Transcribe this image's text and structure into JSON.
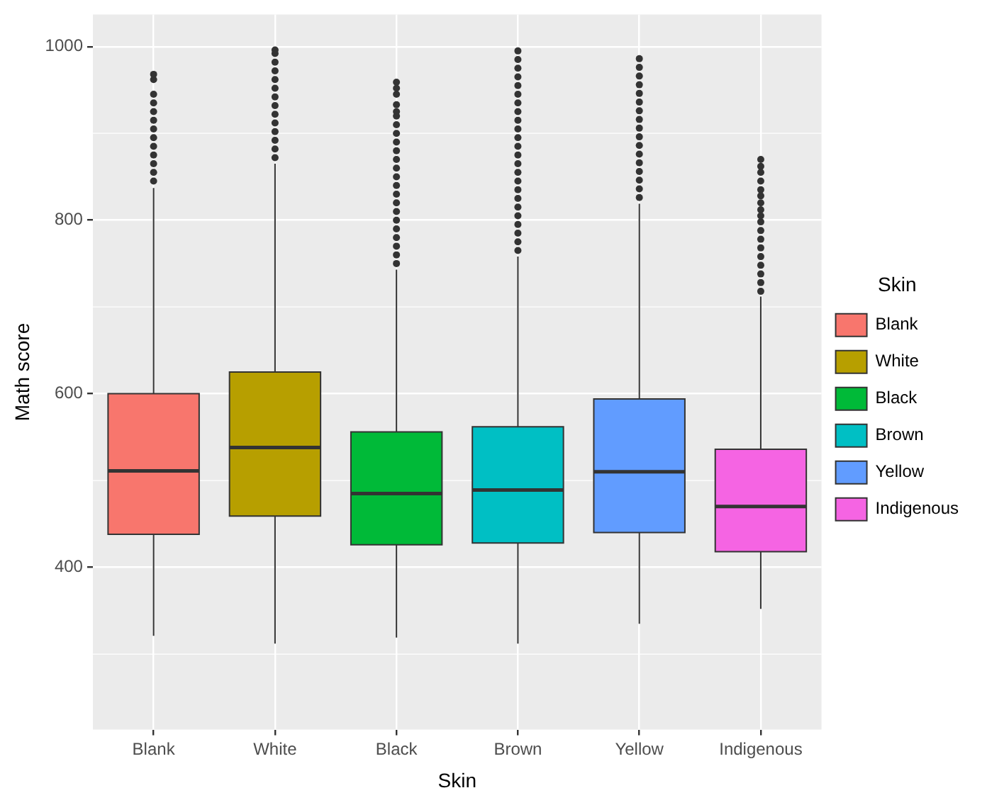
{
  "chart_data": {
    "type": "box",
    "xlabel": "Skin",
    "ylabel": "Math score",
    "legend_title": "Skin",
    "legend": "right",
    "grid": true,
    "categories": [
      "Blank",
      "White",
      "Black",
      "Brown",
      "Yellow",
      "Indigenous"
    ],
    "ylim": [
      213,
      1037
    ],
    "yticks": [
      400,
      600,
      800,
      1000
    ],
    "series": [
      {
        "name": "Blank",
        "color": "#f8766d",
        "boxes": [
          {
            "low": 321,
            "q1": 438,
            "median": 511,
            "q3": 600,
            "high": 837,
            "outliers": [
              845,
              855,
              865,
              875,
              885,
              895,
              905,
              915,
              925,
              935,
              945,
              962,
              968
            ]
          },
          null,
          null,
          null,
          null,
          null
        ]
      },
      {
        "name": "White",
        "color": "#b79f00",
        "boxes": [
          null,
          {
            "low": 312,
            "q1": 459,
            "median": 538,
            "q3": 625,
            "high": 865,
            "outliers": [
              872,
              882,
              892,
              902,
              912,
              922,
              932,
              942,
              952,
              962,
              972,
              982,
              992,
              996
            ]
          },
          null,
          null,
          null,
          null
        ]
      },
      {
        "name": "Black",
        "color": "#00ba38",
        "boxes": [
          null,
          null,
          {
            "low": 319,
            "q1": 426,
            "median": 485,
            "q3": 556,
            "high": 743,
            "outliers": [
              750,
              760,
              770,
              780,
              790,
              800,
              810,
              820,
              830,
              840,
              850,
              860,
              870,
              880,
              890,
              900,
              910,
              920,
              925,
              933,
              945,
              952,
              959
            ]
          },
          null,
          null,
          null
        ]
      },
      {
        "name": "Brown",
        "color": "#00bfc4",
        "boxes": [
          null,
          null,
          null,
          {
            "low": 312,
            "q1": 428,
            "median": 489,
            "q3": 562,
            "high": 758,
            "outliers": [
              765,
              775,
              785,
              795,
              805,
              815,
              825,
              835,
              845,
              855,
              865,
              875,
              885,
              895,
              905,
              915,
              925,
              935,
              945,
              955,
              965,
              975,
              985,
              995
            ]
          },
          null,
          null
        ]
      },
      {
        "name": "Yellow",
        "color": "#619cff",
        "boxes": [
          null,
          null,
          null,
          null,
          {
            "low": 335,
            "q1": 440,
            "median": 510,
            "q3": 594,
            "high": 819,
            "outliers": [
              826,
              836,
              846,
              856,
              866,
              876,
              886,
              896,
              906,
              916,
              926,
              936,
              946,
              956,
              966,
              976,
              986
            ]
          },
          null
        ]
      },
      {
        "name": "Indigenous",
        "color": "#f564e3",
        "boxes": [
          null,
          null,
          null,
          null,
          null,
          {
            "low": 352,
            "q1": 418,
            "median": 470,
            "q3": 536,
            "high": 712,
            "outliers": [
              718,
              728,
              738,
              748,
              758,
              768,
              778,
              788,
              798,
              805,
              812,
              820,
              828,
              835,
              845,
              855,
              862,
              870
            ]
          }
        ]
      }
    ]
  }
}
